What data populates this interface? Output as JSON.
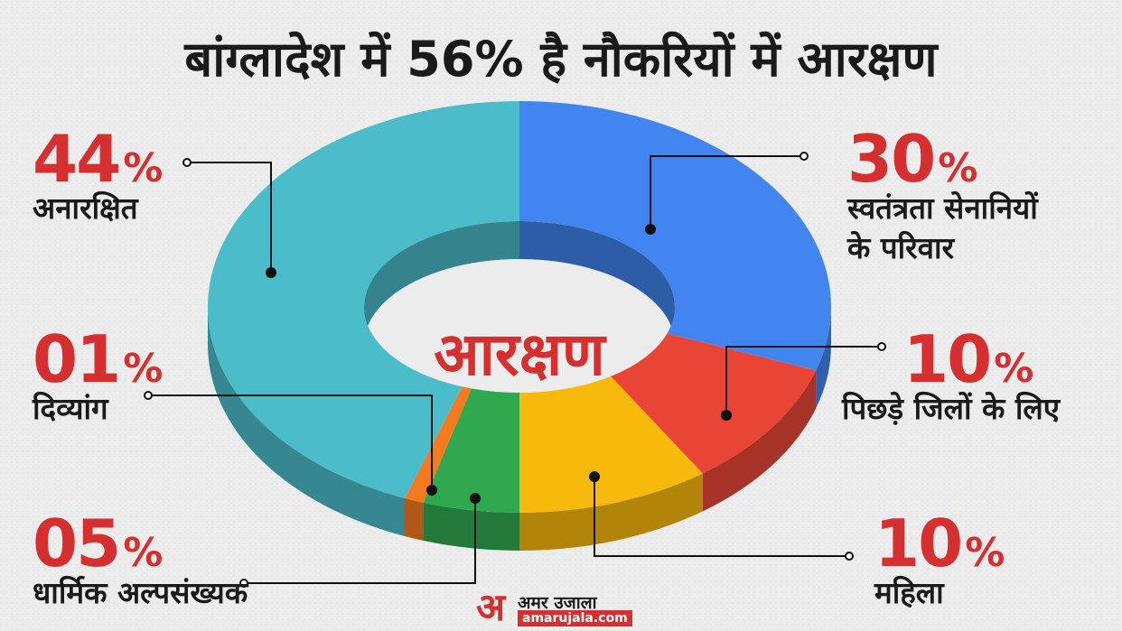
{
  "title": "बांग्लादेश में 56% है नौकरियों में आरक्षण",
  "colors": {
    "accent_red": "#d62f2f",
    "unreserved": "#4bbcc9",
    "freedom_fighters": "#4285f0",
    "backward_districts": "#e84536",
    "women": "#f6b90c",
    "minorities": "#2fa84f",
    "disabled": "#f47a20"
  },
  "chart_data": {
    "type": "pie",
    "variant": "donut-3d",
    "center_label": "आरक्षण",
    "slices": [
      {
        "key": "freedom",
        "label": "स्वतंत्रता सेनानियों के परिवार",
        "label_lines": [
          "स्वतंत्रता सेनानियों",
          "के परिवार"
        ],
        "value": 30,
        "value_text": "30",
        "color": "#4285f0"
      },
      {
        "key": "backward",
        "label": "पिछड़े जिलों के लिए",
        "label_lines": [
          "पिछड़े जिलों के लिए"
        ],
        "value": 10,
        "value_text": "10",
        "color": "#e84536"
      },
      {
        "key": "women",
        "label": "महिला",
        "label_lines": [
          "महिला"
        ],
        "value": 10,
        "value_text": "10",
        "color": "#f6b90c"
      },
      {
        "key": "minority",
        "label": "धार्मिक अल्पसंख्यक",
        "label_lines": [
          "धार्मिक अल्पसंख्यक"
        ],
        "value": 5,
        "value_text": "05",
        "color": "#2fa84f"
      },
      {
        "key": "disabled",
        "label": "दिव्यांग",
        "label_lines": [
          "दिव्यांग"
        ],
        "value": 1,
        "value_text": "01",
        "color": "#f47a20"
      },
      {
        "key": "unreserved",
        "label": "अनारक्षित",
        "label_lines": [
          "अनारक्षित"
        ],
        "value": 44,
        "value_text": "44",
        "color": "#4bbcc9"
      }
    ],
    "percent_symbol": "%"
  },
  "brand": {
    "mark": "अ",
    "name": "अमर उजाला",
    "url": "amarujala.com"
  }
}
